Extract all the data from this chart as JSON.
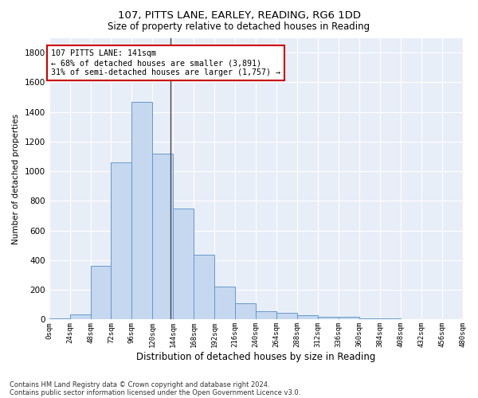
{
  "title_line1": "107, PITTS LANE, EARLEY, READING, RG6 1DD",
  "title_line2": "Size of property relative to detached houses in Reading",
  "xlabel": "Distribution of detached houses by size in Reading",
  "ylabel": "Number of detached properties",
  "bar_color": "#c5d8f0",
  "bar_edge_color": "#6699cc",
  "background_color": "#e8eef8",
  "grid_color": "#ffffff",
  "bins": [
    0,
    24,
    48,
    72,
    96,
    120,
    144,
    168,
    192,
    216,
    240,
    264,
    288,
    312,
    336,
    360,
    384,
    408,
    432,
    456,
    480
  ],
  "values": [
    10,
    35,
    360,
    1060,
    1470,
    1120,
    750,
    435,
    220,
    110,
    55,
    45,
    30,
    20,
    20,
    5,
    5,
    3,
    2,
    2
  ],
  "ylim": [
    0,
    1900
  ],
  "yticks": [
    0,
    200,
    400,
    600,
    800,
    1000,
    1200,
    1400,
    1600,
    1800
  ],
  "property_size": 141,
  "annotation_line1": "107 PITTS LANE: 141sqm",
  "annotation_line2": "← 68% of detached houses are smaller (3,891)",
  "annotation_line3": "31% of semi-detached houses are larger (1,757) →",
  "annotation_box_color": "#ffffff",
  "annotation_edge_color": "#cc0000",
  "footer_line1": "Contains HM Land Registry data © Crown copyright and database right 2024.",
  "footer_line2": "Contains public sector information licensed under the Open Government Licence v3.0.",
  "vline_x": 141,
  "vline_color": "#444444"
}
